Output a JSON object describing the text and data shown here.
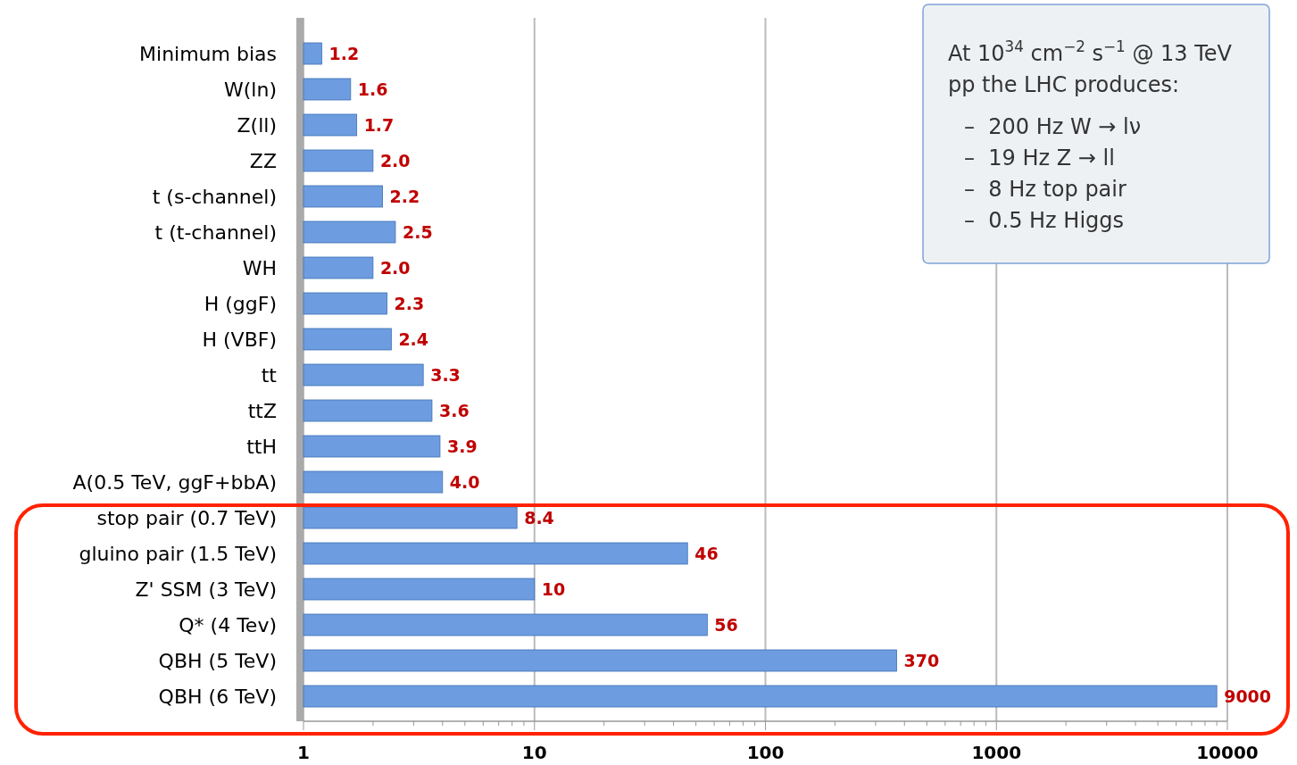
{
  "chart_data": {
    "type": "bar",
    "orientation": "horizontal",
    "log": "x",
    "categories": [
      "Minimum bias",
      "W(ln)",
      "Z(ll)",
      "ZZ",
      "t (s-channel)",
      "t (t-channel)",
      "WH",
      "H (ggF)",
      "H (VBF)",
      "tt",
      "ttZ",
      "ttH",
      "A(0.5 TeV, ggF+bbA)",
      "stop pair (0.7 TeV)",
      "gluino pair (1.5 TeV)",
      "Z' SSM (3 TeV)",
      "Q* (4 Tev)",
      "QBH (5 TeV)",
      "QBH (6 TeV)"
    ],
    "values": [
      1.2,
      1.6,
      1.7,
      2.0,
      2.2,
      2.5,
      2.0,
      2.3,
      2.4,
      3.3,
      3.6,
      3.9,
      4.0,
      8.4,
      46,
      10,
      56,
      370,
      9000
    ],
    "value_labels": [
      "1.2",
      "1.6",
      "1.7",
      "2.0",
      "2.2",
      "2.5",
      "2.0",
      "2.3",
      "2.4",
      "3.3",
      "3.6",
      "3.9",
      "4.0",
      "8.4",
      "46",
      "10",
      "56",
      "370",
      "9000"
    ],
    "color": "#6d9de0",
    "xlim": [
      1,
      10000
    ],
    "xticks": [
      1,
      10,
      100,
      1000,
      10000
    ],
    "grid": "x",
    "annotations": [
      "At 10$^{34}$ cm$^{−2}$ s$^{−1}$ @ 13 TeV",
      "pp the LHC produces:",
      "–  200 Hz W → lν",
      "–  19 Hz Z → ll",
      "–  8 Hz top pair",
      "–  0.5 Hz Higgs"
    ]
  }
}
